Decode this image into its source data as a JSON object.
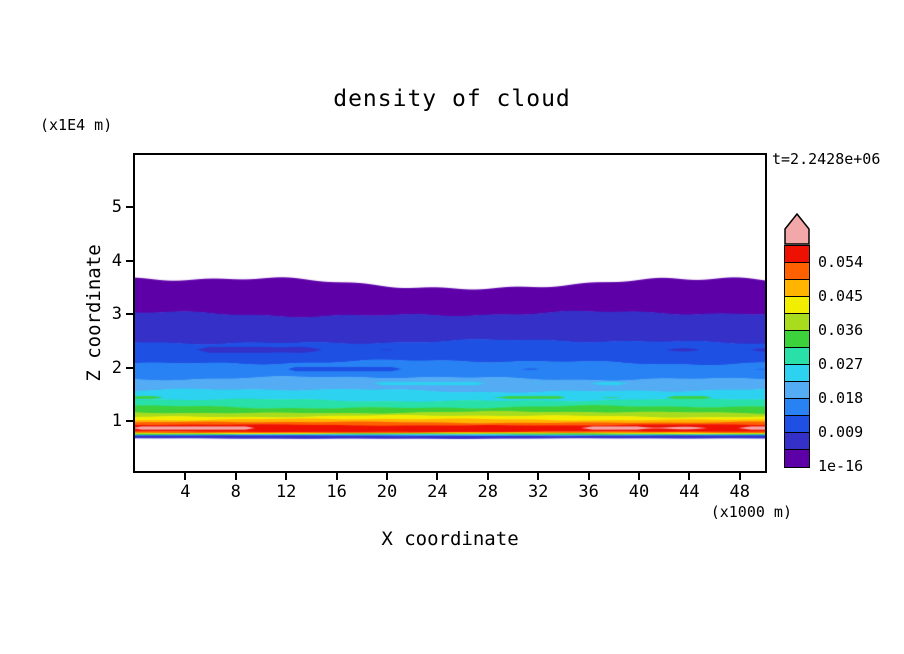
{
  "header": {
    "title": "density of cloud",
    "timestamp": "t=2.2428e+06"
  },
  "axes": {
    "x_label": "X coordinate",
    "y_label": "Z coordinate",
    "x_unit": "(x1000 m)",
    "y_unit": "(x1E4 m)",
    "x_ticks": [
      4,
      8,
      12,
      16,
      20,
      24,
      28,
      32,
      36,
      40,
      44,
      48
    ],
    "y_ticks": [
      1,
      2,
      3,
      4,
      5
    ],
    "x_range": [
      0,
      50
    ],
    "y_range": [
      0,
      6
    ]
  },
  "colorbar": {
    "labels": [
      "0.054",
      "0.045",
      "0.036",
      "0.027",
      "0.018",
      "0.009",
      "1e-16"
    ],
    "colors": [
      "#5e00a8",
      "#3430c8",
      "#1e50e4",
      "#2882f4",
      "#54acf4",
      "#2cd2f0",
      "#28e0a8",
      "#3cd23c",
      "#aadc1e",
      "#f2ee00",
      "#ffb400",
      "#ff6000",
      "#ee1000"
    ],
    "overflow_color": "#f2a8a8",
    "levels": [
      1e-16,
      0.0045,
      0.009,
      0.0135,
      0.018,
      0.0225,
      0.027,
      0.0315,
      0.036,
      0.0405,
      0.045,
      0.0495,
      0.054,
      0.0585
    ]
  },
  "chart_data": {
    "type": "filled_contour",
    "title": "density of cloud",
    "variable": "cloud density",
    "time_label": "t=2.2428e+06",
    "xlabel": "X coordinate (x1000 m)",
    "ylabel": "Z coordinate (x1E4 m)",
    "xlim": [
      0,
      50
    ],
    "ylim": [
      0,
      6
    ],
    "contour_levels": [
      1e-16,
      0.0045,
      0.009,
      0.0135,
      0.018,
      0.0225,
      0.027,
      0.0315,
      0.036,
      0.0405,
      0.045,
      0.0495,
      0.054,
      0.0585
    ],
    "description": "Horizontally stratified cloud-density field: near-zero density aloft (cloud top ~z=3.7), density increasing downward to a maximum (>0.0585, pink patches) near z=0.9, then dropping sharply to zero below z~0.68.",
    "bands": [
      {
        "c": 0,
        "z_top": 3.62,
        "amp": 0.1
      },
      {
        "c": 1,
        "z_top": 3.0,
        "amp": 0.07
      },
      {
        "c": 2,
        "z_top": 2.48,
        "amp": 0.06
      },
      {
        "c": 3,
        "z_top": 2.1,
        "amp": 0.06
      },
      {
        "c": 4,
        "z_top": 1.8,
        "amp": 0.05
      },
      {
        "c": 5,
        "z_top": 1.57,
        "amp": 0.05
      },
      {
        "c": 6,
        "z_top": 1.39,
        "amp": 0.04
      },
      {
        "c": 7,
        "z_top": 1.26,
        "amp": 0.04
      },
      {
        "c": 8,
        "z_top": 1.16,
        "amp": 0.03
      },
      {
        "c": 9,
        "z_top": 1.09,
        "amp": 0.03
      },
      {
        "c": 10,
        "z_top": 1.03,
        "amp": 0.025
      },
      {
        "c": 11,
        "z_top": 0.975,
        "amp": 0.02
      },
      {
        "c": 12,
        "z_top": 0.925,
        "amp": 0.018
      },
      {
        "c": 11,
        "z_top": 0.8,
        "amp": 0.012
      },
      {
        "c": 9,
        "z_top": 0.78,
        "amp": 0.01
      },
      {
        "c": 7,
        "z_top": 0.764,
        "amp": 0.01
      },
      {
        "c": 5,
        "z_top": 0.749,
        "amp": 0.009
      },
      {
        "c": 3,
        "z_top": 0.735,
        "amp": 0.009
      },
      {
        "c": 1,
        "z_top": 0.723,
        "amp": 0.008
      },
      {
        "c": -1,
        "z_top": 0.68,
        "amp": 0.008
      }
    ]
  }
}
